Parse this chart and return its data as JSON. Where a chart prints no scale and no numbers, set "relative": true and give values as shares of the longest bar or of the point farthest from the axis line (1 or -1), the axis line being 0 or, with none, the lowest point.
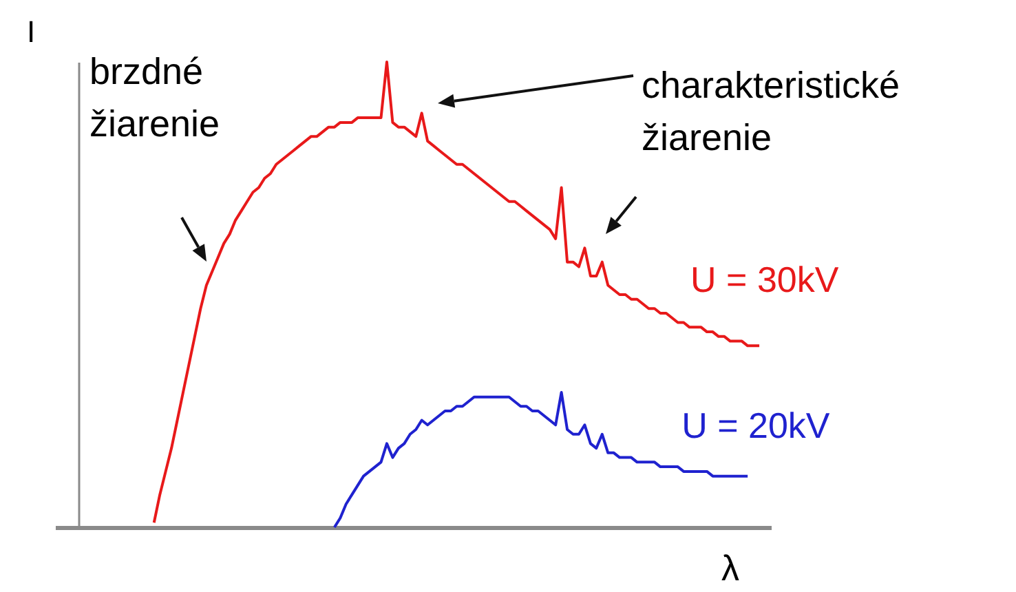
{
  "chart_data": {
    "type": "line",
    "relative": true,
    "xlabel": "λ",
    "ylabel": "I",
    "legend": false,
    "tick_labels": false,
    "annotations": [
      "brzdné žiarenie",
      "charakteristické žiarenie"
    ],
    "categories": [
      null,
      null,
      null,
      null,
      null,
      null,
      null,
      null,
      null,
      null,
      null,
      null,
      null,
      null,
      null,
      null,
      null,
      null,
      null,
      null,
      null,
      null,
      null,
      null,
      null,
      null,
      null,
      null,
      null,
      null,
      null,
      null,
      null,
      null,
      null,
      null,
      null,
      null,
      null,
      null,
      null,
      null,
      null,
      null,
      null,
      null,
      null,
      null,
      null,
      null,
      null,
      null,
      null,
      null,
      null,
      null,
      null,
      null,
      null,
      null,
      null,
      null,
      null,
      null,
      null,
      null,
      null,
      null,
      null,
      null,
      null,
      null,
      null,
      null,
      null,
      null,
      null,
      null,
      null,
      null,
      null,
      null,
      null,
      null,
      null,
      null,
      null,
      null,
      null,
      null,
      null,
      null,
      null,
      null,
      null,
      null,
      null,
      null,
      null,
      null,
      null,
      null,
      null,
      null,
      null,
      null,
      null,
      null,
      null,
      null,
      null,
      null,
      null,
      null,
      null,
      null,
      null,
      null,
      null,
      null,
      null,
      null
    ],
    "series": [
      {
        "name": "U = 30kV",
        "color": "#e8191a",
        "values": [
          null,
          null,
          null,
          null,
          null,
          null,
          null,
          null,
          null,
          null,
          null,
          null,
          null,
          null,
          null,
          null,
          0.01,
          0.07,
          0.12,
          0.17,
          0.23,
          0.29,
          0.35,
          0.41,
          0.47,
          0.52,
          0.55,
          0.58,
          0.61,
          0.63,
          0.66,
          0.68,
          0.7,
          0.72,
          0.73,
          0.75,
          0.76,
          0.78,
          0.79,
          0.8,
          0.81,
          0.82,
          0.83,
          0.84,
          0.84,
          0.85,
          0.86,
          0.86,
          0.87,
          0.87,
          0.87,
          0.88,
          0.88,
          0.88,
          0.88,
          0.88,
          1,
          0.87,
          0.86,
          0.86,
          0.85,
          0.84,
          0.89,
          0.83,
          0.82,
          0.81,
          0.8,
          0.79,
          0.78,
          0.78,
          0.77,
          0.76,
          0.75,
          0.74,
          0.73,
          0.72,
          0.71,
          0.7,
          0.7,
          0.69,
          0.68,
          0.67,
          0.66,
          0.65,
          0.64,
          0.62,
          0.73,
          0.57,
          0.57,
          0.56,
          0.6,
          0.54,
          0.54,
          0.57,
          0.52,
          0.51,
          0.5,
          0.5,
          0.49,
          0.49,
          0.48,
          0.47,
          0.47,
          0.46,
          0.46,
          0.45,
          0.44,
          0.44,
          0.43,
          0.43,
          0.43,
          0.42,
          0.42,
          0.41,
          0.41,
          0.4,
          0.4,
          0.4,
          0.39,
          0.39,
          0.39,
          null
        ]
      },
      {
        "name": "U = 20kV",
        "color": "#1f22cf",
        "values": [
          null,
          null,
          null,
          null,
          null,
          null,
          null,
          null,
          null,
          null,
          null,
          null,
          null,
          null,
          null,
          null,
          null,
          null,
          null,
          null,
          null,
          null,
          null,
          null,
          null,
          null,
          null,
          null,
          null,
          null,
          null,
          null,
          null,
          null,
          null,
          null,
          null,
          null,
          null,
          null,
          null,
          null,
          null,
          null,
          null,
          null,
          null,
          0,
          0.02,
          0.05,
          0.07,
          0.09,
          0.11,
          0.12,
          0.13,
          0.14,
          0.18,
          0.15,
          0.17,
          0.18,
          0.2,
          0.21,
          0.23,
          0.22,
          0.23,
          0.24,
          0.25,
          0.25,
          0.26,
          0.26,
          0.27,
          0.28,
          0.28,
          0.28,
          0.28,
          0.28,
          0.28,
          0.28,
          0.27,
          0.26,
          0.26,
          0.25,
          0.25,
          0.24,
          0.23,
          0.22,
          0.29,
          0.21,
          0.2,
          0.2,
          0.22,
          0.18,
          0.17,
          0.2,
          0.16,
          0.16,
          0.15,
          0.15,
          0.15,
          0.14,
          0.14,
          0.14,
          0.14,
          0.13,
          0.13,
          0.13,
          0.13,
          0.12,
          0.12,
          0.12,
          0.12,
          0.12,
          0.11,
          0.11,
          0.11,
          0.11,
          0.11,
          0.11,
          0.11,
          null,
          null,
          null
        ]
      }
    ]
  }
}
